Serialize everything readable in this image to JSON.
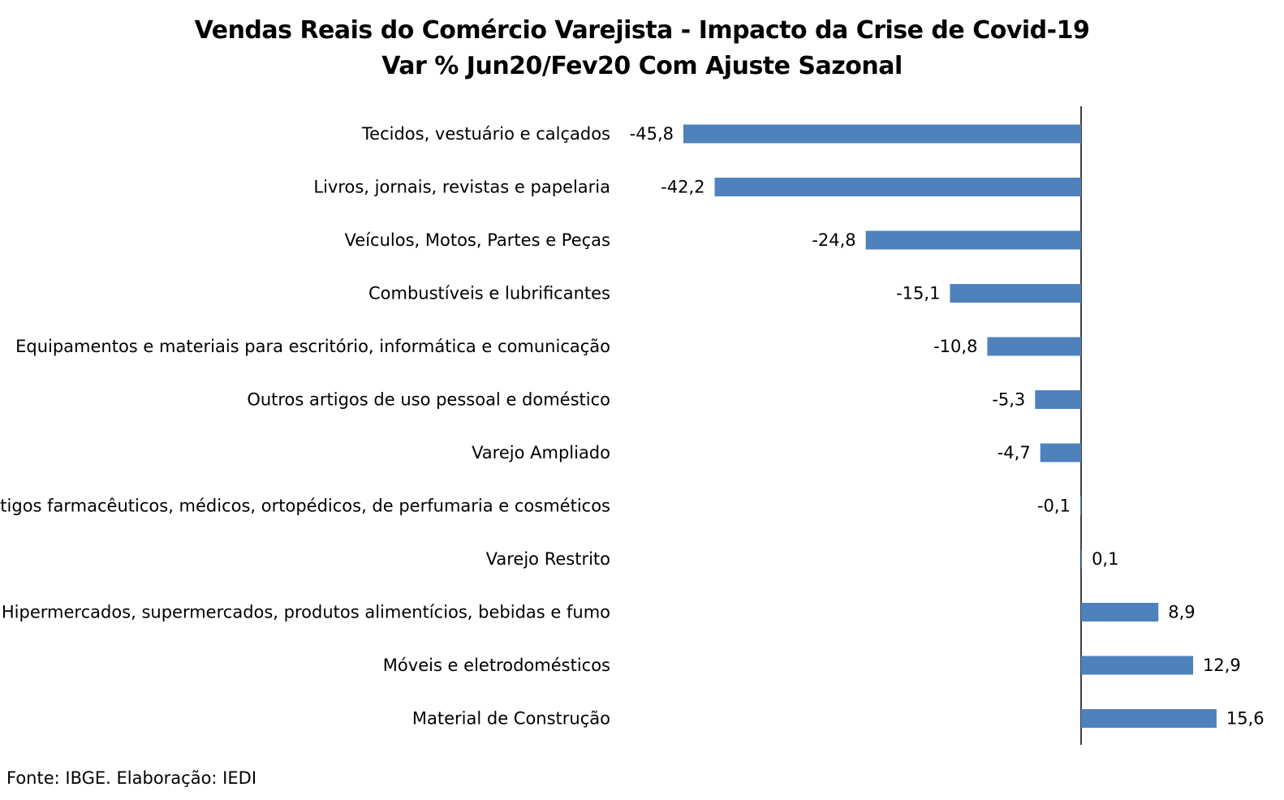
{
  "chart_data": {
    "type": "bar",
    "orientation": "horizontal",
    "title": "Vendas Reais do Comércio Varejista - Impacto da Crise de Covid-19",
    "subtitle": "Var % Jun20/Fev20 Com Ajuste Sazonal",
    "categories": [
      "Tecidos, vestuário e calçados",
      "Livros, jornais, revistas e papelaria",
      "Veículos, Motos, Partes e Peças",
      "Combustíveis e lubrificantes",
      "Equipamentos e materiais para escritório, informática e comunicação",
      "Outros artigos de uso pessoal e doméstico",
      "Varejo Ampliado",
      "Artigos farmacêuticos, médicos, ortopédicos, de perfumaria e cosméticos",
      "Varejo Restrito",
      "Hipermercados, supermercados, produtos alimentícios, bebidas e fumo",
      "Móveis e eletrodomésticos",
      "Material de Construção"
    ],
    "values": [
      -45.8,
      -42.2,
      -24.8,
      -15.1,
      -10.8,
      -5.3,
      -4.7,
      -0.1,
      0.1,
      8.9,
      12.9,
      15.6
    ],
    "value_labels": [
      "-45,8",
      "-42,2",
      "-24,8",
      "-15,1",
      "-10,8",
      "-5,3",
      "-4,7",
      "-0,1",
      "0,1",
      "8,9",
      "12,9",
      "15,6"
    ],
    "xlim": [
      -45.8,
      15.6
    ],
    "bar_color": "#4f81bd",
    "grid": false,
    "legend": "none",
    "source": "Fonte: IBGE. Elaboração: IEDI"
  }
}
